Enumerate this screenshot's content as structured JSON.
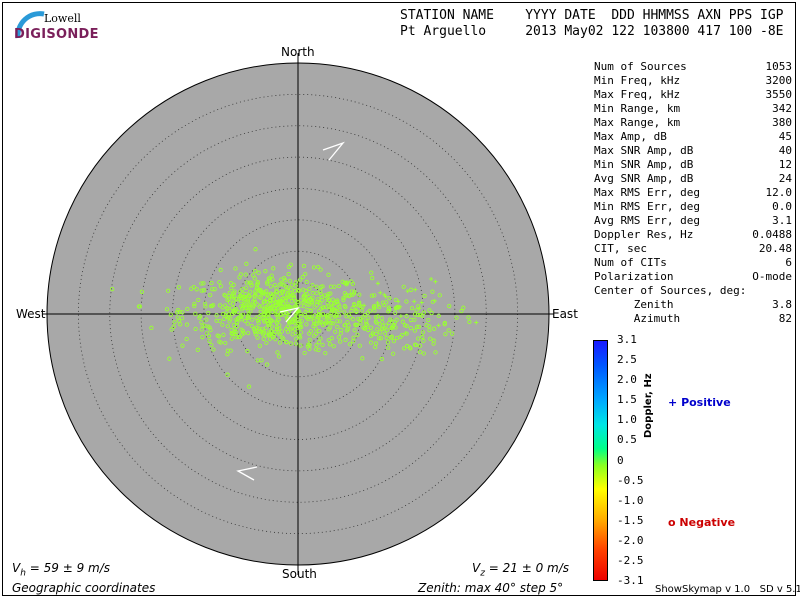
{
  "header": {
    "line1": "STATION NAME    YYYY DATE  DDD HHMMSS AXN PPS IGP",
    "line2": "Pt Arguello     2013 May02 122 103800 417 100 -8E"
  },
  "logo": {
    "top": "Lowell",
    "main": "DIGISONDE"
  },
  "compass": {
    "north": "North",
    "south": "South",
    "east": "East",
    "west": "West"
  },
  "velocity": {
    "vh": "= 59 ± 9 m/s",
    "vz": "= 21 ± 0 m/s"
  },
  "footer": {
    "coords": "Geographic coordinates",
    "zenith": "Zenith: max 40°  step 5°",
    "version": "ShowSkymap v 1.0   SD v 5.1"
  },
  "stats": [
    {
      "label": "Num of Sources",
      "value": "1053"
    },
    {
      "label": "Min Freq, kHz",
      "value": "3200"
    },
    {
      "label": "Max Freq, kHz",
      "value": "3550"
    },
    {
      "label": "Min Range, km",
      "value": "342"
    },
    {
      "label": "Max Range, km",
      "value": "380"
    },
    {
      "label": "Max Amp, dB",
      "value": "45"
    },
    {
      "label": "Max SNR Amp, dB",
      "value": "40"
    },
    {
      "label": "Min SNR Amp, dB",
      "value": "12"
    },
    {
      "label": "Avg SNR Amp, dB",
      "value": "24"
    },
    {
      "label": "Max RMS Err, deg",
      "value": "12.0"
    },
    {
      "label": "Min RMS Err, deg",
      "value": "0.0"
    },
    {
      "label": "Avg RMS Err, deg",
      "value": "3.1"
    },
    {
      "label": "Doppler Res, Hz",
      "value": "0.0488"
    },
    {
      "label": "CIT, sec",
      "value": "20.48"
    },
    {
      "label": "Num of CITs",
      "value": "6"
    },
    {
      "label": "Polarization",
      "value": "O-mode"
    },
    {
      "label": "Center of Sources, deg:",
      "value": ""
    },
    {
      "label": "      Zenith",
      "value": "3.8"
    },
    {
      "label": "      Azimuth",
      "value": "82"
    }
  ],
  "colorbar": {
    "title": "Doppler, Hz",
    "ticks": [
      "3.1",
      "2.5",
      "2.0",
      "1.5",
      "1.0",
      "0.5",
      "0",
      "-0.5",
      "-1.0",
      "-1.5",
      "-2.0",
      "-2.5",
      "-3.1"
    ]
  },
  "legend": {
    "positive": "Positive",
    "negative": "Negative",
    "positive_color": "#0000cc",
    "negative_color": "#cc0000"
  },
  "chart_data": {
    "type": "scatter",
    "projection": "polar skymap",
    "r_max_deg": 40,
    "r_step_deg": 5,
    "background": "#a8a8a8",
    "point_color": "#99ff33",
    "centroid": {
      "zenith_deg": 3.8,
      "azimuth_deg": 82
    },
    "total_sources": 1053,
    "clusters": [
      {
        "name": "main",
        "center_x_deg": -3.5,
        "center_y_deg": 0.5,
        "sx": 7.5,
        "sy": 3.0,
        "count": 700,
        "marker": "circle"
      },
      {
        "name": "east-tail",
        "center_x_deg": 13,
        "center_y_deg": -1.5,
        "sx": 6,
        "sy": 2.5,
        "count": 180,
        "marker": "circle"
      },
      {
        "name": "east-positive",
        "center_x_deg": 17,
        "center_y_deg": 1.0,
        "sx": 5,
        "sy": 2.5,
        "count": 25,
        "marker": "plus"
      }
    ],
    "wind_arrows": [
      {
        "name": "north-arrow"
      },
      {
        "name": "south-arrow"
      }
    ]
  }
}
